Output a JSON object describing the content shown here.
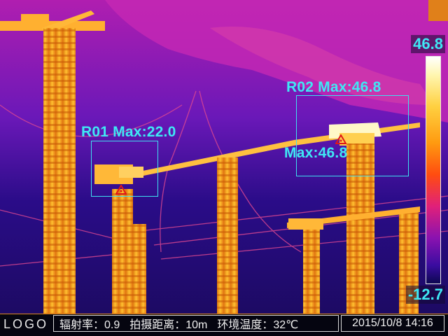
{
  "rois": [
    {
      "label": "R01 Max:22.0"
    },
    {
      "label": "R02 Max:46.8"
    }
  ],
  "hotspot_label": "Max:46.8",
  "scale": {
    "max": "46.8",
    "min": "-12.7"
  },
  "footer": {
    "logo": "LOGO",
    "emissivity": "辐射率：0.9",
    "distance": "拍摄距离：10m",
    "ambient": "环境温度：32℃",
    "timestamp": "2015/10/8 14:16"
  },
  "colors": {
    "annotation": "#3fe8f4",
    "marker": "#e01818"
  }
}
